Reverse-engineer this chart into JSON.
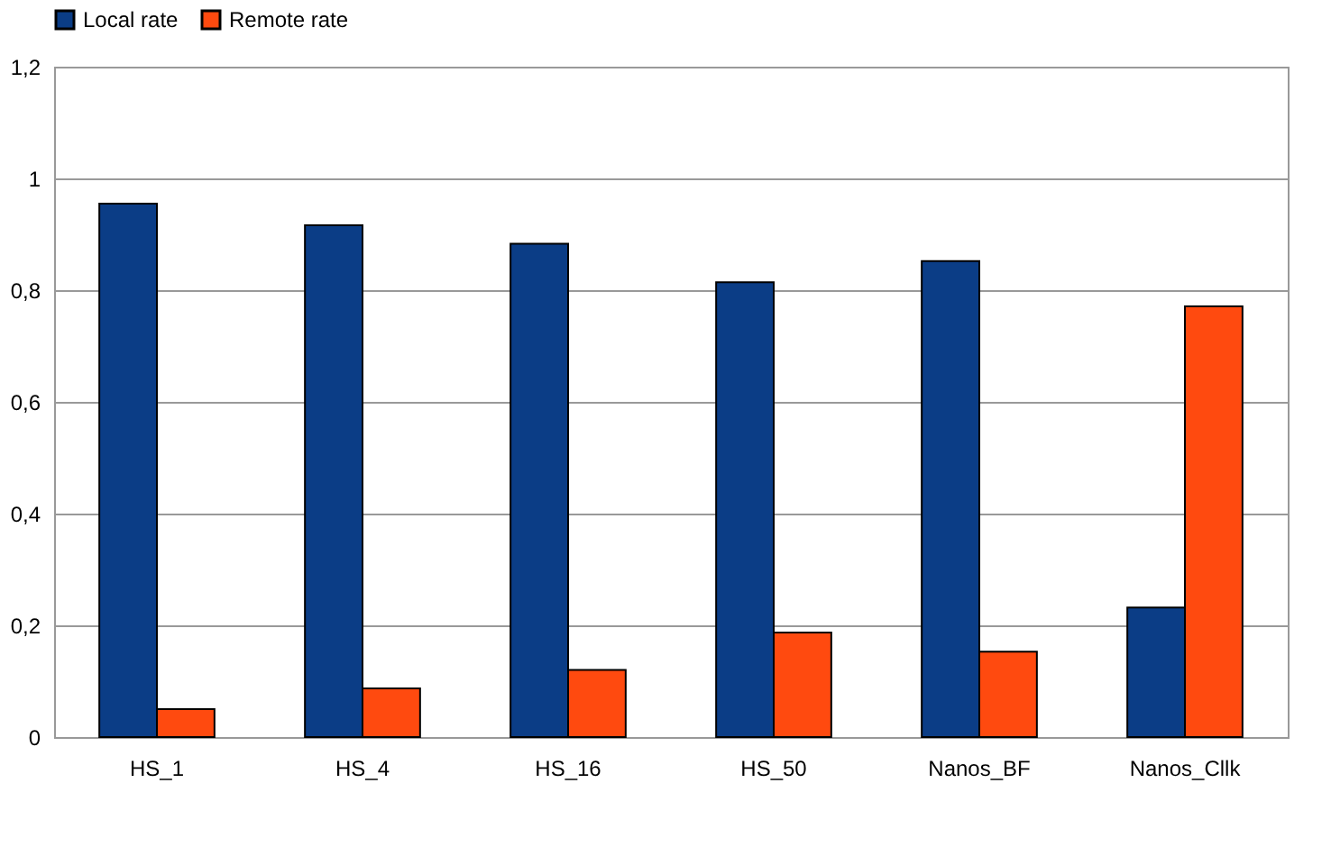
{
  "chart_data": {
    "type": "bar",
    "categories": [
      "HS_1",
      "HS_4",
      "HS_16",
      "HS_50",
      "Nanos_BF",
      "Nanos_Cllk"
    ],
    "series": [
      {
        "name": "Local rate",
        "color": "#0b3d86",
        "values": [
          0.955,
          0.916,
          0.883,
          0.814,
          0.852,
          0.232
        ]
      },
      {
        "name": "Remote rate",
        "color": "#ff4a0f",
        "values": [
          0.05,
          0.087,
          0.12,
          0.187,
          0.153,
          0.771
        ]
      }
    ],
    "ylim": [
      0,
      1.2
    ],
    "yticks": [
      0,
      {
        "value": 0.2,
        "label": "0,2"
      },
      {
        "value": 0.4,
        "label": "0,4"
      },
      {
        "value": 0.6,
        "label": "0,6"
      },
      {
        "value": 0.8,
        "label": "0,8"
      },
      1,
      {
        "value": 1.2,
        "label": "1,2"
      }
    ],
    "grid": "y",
    "legend": "top"
  }
}
